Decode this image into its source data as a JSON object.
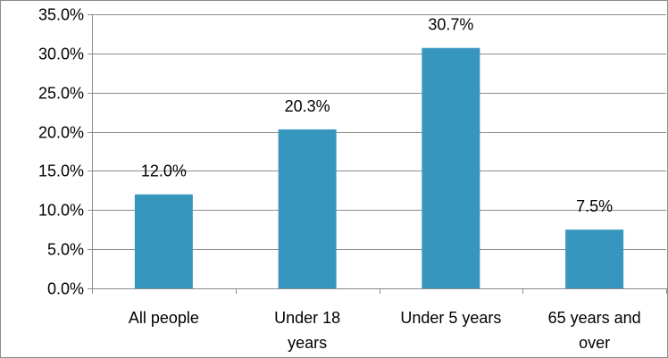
{
  "chart_data": {
    "type": "bar",
    "categories": [
      [
        "All people"
      ],
      [
        "Under 18",
        "years"
      ],
      [
        "Under 5 years"
      ],
      [
        "65 years and",
        "over"
      ]
    ],
    "values": [
      12.0,
      20.3,
      30.7,
      7.5
    ],
    "data_labels": [
      "12.0%",
      "20.3%",
      "30.7%",
      "7.5%"
    ],
    "y_ticks": [
      "0.0%",
      "5.0%",
      "10.0%",
      "15.0%",
      "20.0%",
      "25.0%",
      "30.0%",
      "35.0%"
    ],
    "ylim": [
      0,
      35
    ],
    "y_step": 5,
    "grid": true,
    "legend": "none",
    "colors": {
      "bar": "#3796BE",
      "grid": "#8C8C8C",
      "axis": "#8C8C8C",
      "frame": "#8C8C8C",
      "text": "#000000"
    }
  }
}
